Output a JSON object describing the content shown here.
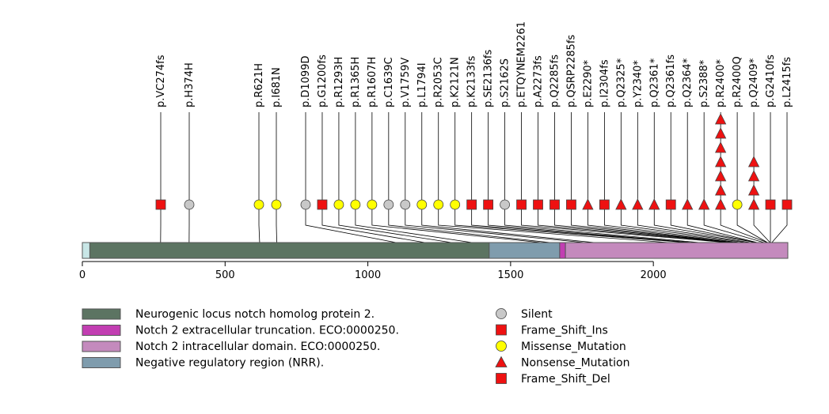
{
  "protein": {
    "length": 2471,
    "domains": [
      {
        "name": "Neurogenic locus notch homolog protein 2.",
        "start": 26,
        "end": 2471,
        "color": "#5c7462"
      },
      {
        "name": "Negative regulatory region (NRR).",
        "start": 1425,
        "end": 1672,
        "color": "#7f9cad"
      },
      {
        "name": "Notch 2 extracellular truncation. ECO:0000250.",
        "start": 1672,
        "end": 1692,
        "color": "#c23eb2"
      },
      {
        "name": "Notch 2 intracellular domain. ECO:0000250.",
        "start": 1692,
        "end": 2471,
        "color": "#c48abd"
      }
    ]
  },
  "axis": {
    "ticks": [
      {
        "value": 0,
        "label": "0"
      },
      {
        "value": 500,
        "label": "500"
      },
      {
        "value": 1000,
        "label": "1000"
      },
      {
        "value": 1500,
        "label": "1500"
      },
      {
        "value": 2000,
        "label": "2000"
      }
    ]
  },
  "mutations": [
    {
      "label": "p.VC274fs",
      "pos": 274,
      "type": "Frame_Shift_Del",
      "count": 1
    },
    {
      "label": "p.H374H",
      "pos": 374,
      "type": "Silent",
      "count": 1
    },
    {
      "label": "p.R621H",
      "pos": 621,
      "type": "Missense_Mutation",
      "count": 1
    },
    {
      "label": "p.I681N",
      "pos": 681,
      "type": "Missense_Mutation",
      "count": 1
    },
    {
      "label": "p.D1099D",
      "pos": 1099,
      "type": "Silent",
      "count": 1
    },
    {
      "label": "p.G1200fs",
      "pos": 1200,
      "type": "Frame_Shift_Ins",
      "count": 1
    },
    {
      "label": "p.R1293H",
      "pos": 1293,
      "type": "Missense_Mutation",
      "count": 1
    },
    {
      "label": "p.R1365H",
      "pos": 1365,
      "type": "Missense_Mutation",
      "count": 1
    },
    {
      "label": "p.R1607H",
      "pos": 1607,
      "type": "Missense_Mutation",
      "count": 1
    },
    {
      "label": "p.C1639C",
      "pos": 1639,
      "type": "Silent",
      "count": 1
    },
    {
      "label": "p.V1759V",
      "pos": 1759,
      "type": "Silent",
      "count": 1
    },
    {
      "label": "p.L1794I",
      "pos": 1794,
      "type": "Missense_Mutation",
      "count": 1
    },
    {
      "label": "p.R2053C",
      "pos": 2053,
      "type": "Missense_Mutation",
      "count": 1
    },
    {
      "label": "p.K2121N",
      "pos": 2121,
      "type": "Missense_Mutation",
      "count": 1
    },
    {
      "label": "p.K2133fs",
      "pos": 2133,
      "type": "Frame_Shift_Del",
      "count": 1
    },
    {
      "label": "p.SE2136fs",
      "pos": 2136,
      "type": "Frame_Shift_Del",
      "count": 1
    },
    {
      "label": "p.S2162S",
      "pos": 2162,
      "type": "Silent",
      "count": 1
    },
    {
      "label": "p.ETQYNEM2261",
      "pos": 2261,
      "type": "Frame_Shift_Del",
      "count": 1
    },
    {
      "label": "p.A2273fs",
      "pos": 2273,
      "type": "Frame_Shift_Del",
      "count": 1
    },
    {
      "label": "p.Q2285fs",
      "pos": 2285,
      "type": "Frame_Shift_Del",
      "count": 1
    },
    {
      "label": "p.QSRP2285fs",
      "pos": 2285,
      "type": "Frame_Shift_Del",
      "count": 1
    },
    {
      "label": "p.E2290*",
      "pos": 2290,
      "type": "Nonsense_Mutation",
      "count": 1
    },
    {
      "label": "p.I2304fs",
      "pos": 2304,
      "type": "Frame_Shift_Del",
      "count": 1
    },
    {
      "label": "p.Q2325*",
      "pos": 2325,
      "type": "Nonsense_Mutation",
      "count": 1
    },
    {
      "label": "p.Y2340*",
      "pos": 2340,
      "type": "Nonsense_Mutation",
      "count": 1
    },
    {
      "label": "p.Q2361*",
      "pos": 2361,
      "type": "Nonsense_Mutation",
      "count": 1
    },
    {
      "label": "p.Q2361fs",
      "pos": 2361,
      "type": "Frame_Shift_Del",
      "count": 1
    },
    {
      "label": "p.Q2364*",
      "pos": 2364,
      "type": "Nonsense_Mutation",
      "count": 1
    },
    {
      "label": "p.S2388*",
      "pos": 2388,
      "type": "Nonsense_Mutation",
      "count": 1
    },
    {
      "label": "p.R2400*",
      "pos": 2400,
      "type": "Nonsense_Mutation",
      "count": 7
    },
    {
      "label": "p.R2400Q",
      "pos": 2400,
      "type": "Missense_Mutation",
      "count": 1
    },
    {
      "label": "p.Q2409*",
      "pos": 2409,
      "type": "Nonsense_Mutation",
      "count": 4
    },
    {
      "label": "p.G2410fs",
      "pos": 2410,
      "type": "Frame_Shift_Del",
      "count": 1
    },
    {
      "label": "p.L2415fs",
      "pos": 2415,
      "type": "Frame_Shift_Del",
      "count": 1
    }
  ],
  "legend": {
    "domains": [
      {
        "label": "Neurogenic locus notch homolog protein 2.",
        "color": "#5c7462"
      },
      {
        "label": "Notch 2 extracellular truncation. ECO:0000250.",
        "color": "#c23eb2"
      },
      {
        "label": "Notch 2 intracellular domain. ECO:0000250.",
        "color": "#c48abd"
      },
      {
        "label": "Negative regulatory region (NRR).",
        "color": "#7f9cad"
      }
    ],
    "mutation_types": [
      {
        "label": "Silent",
        "shape": "circle",
        "color": "#c8c8c8"
      },
      {
        "label": "Frame_Shift_Ins",
        "shape": "square",
        "color": "#ee1111"
      },
      {
        "label": "Missense_Mutation",
        "shape": "circle",
        "color": "#ffff00"
      },
      {
        "label": "Nonsense_Mutation",
        "shape": "triangle",
        "color": "#ee1111"
      },
      {
        "label": "Frame_Shift_Del",
        "shape": "square",
        "color": "#ee1111"
      }
    ]
  },
  "colors": {
    "background_strip": "#c8e6e6",
    "Silent": "#c8c8c8",
    "Missense_Mutation": "#ffff00",
    "Nonsense_Mutation": "#ee1111",
    "Frame_Shift_Del": "#ee1111",
    "Frame_Shift_Ins": "#ee1111"
  }
}
